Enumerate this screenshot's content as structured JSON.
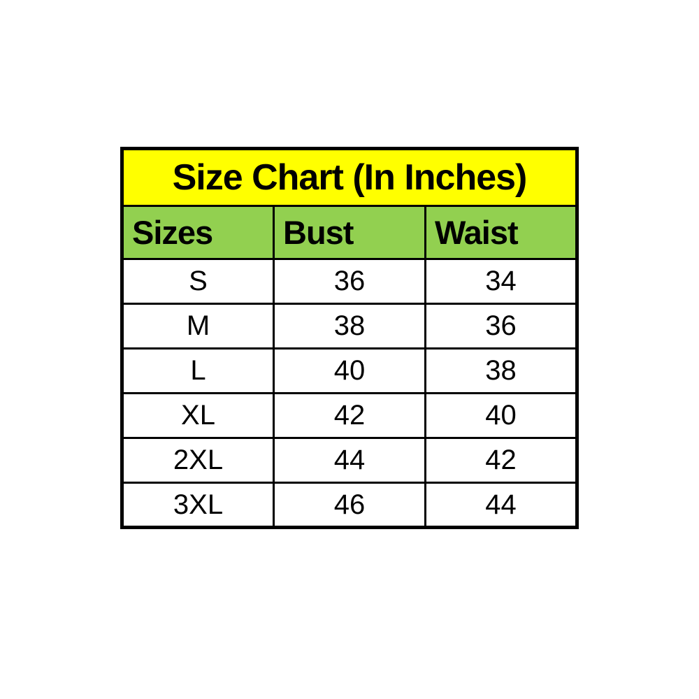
{
  "chart_data": {
    "type": "table",
    "title": "Size Chart (In Inches)",
    "columns": [
      "Sizes",
      "Bust",
      "Waist"
    ],
    "rows": [
      [
        "S",
        "36",
        "34"
      ],
      [
        "M",
        "38",
        "36"
      ],
      [
        "L",
        "40",
        "38"
      ],
      [
        "XL",
        "42",
        "40"
      ],
      [
        "2XL",
        "44",
        "42"
      ],
      [
        "3XL",
        "46",
        "44"
      ]
    ]
  },
  "colors": {
    "title_bg": "#ffff00",
    "header_bg": "#92d050",
    "border": "#000000",
    "row_bg": "#ffffff",
    "text": "#000000",
    "page_bg": "#ffffff"
  }
}
